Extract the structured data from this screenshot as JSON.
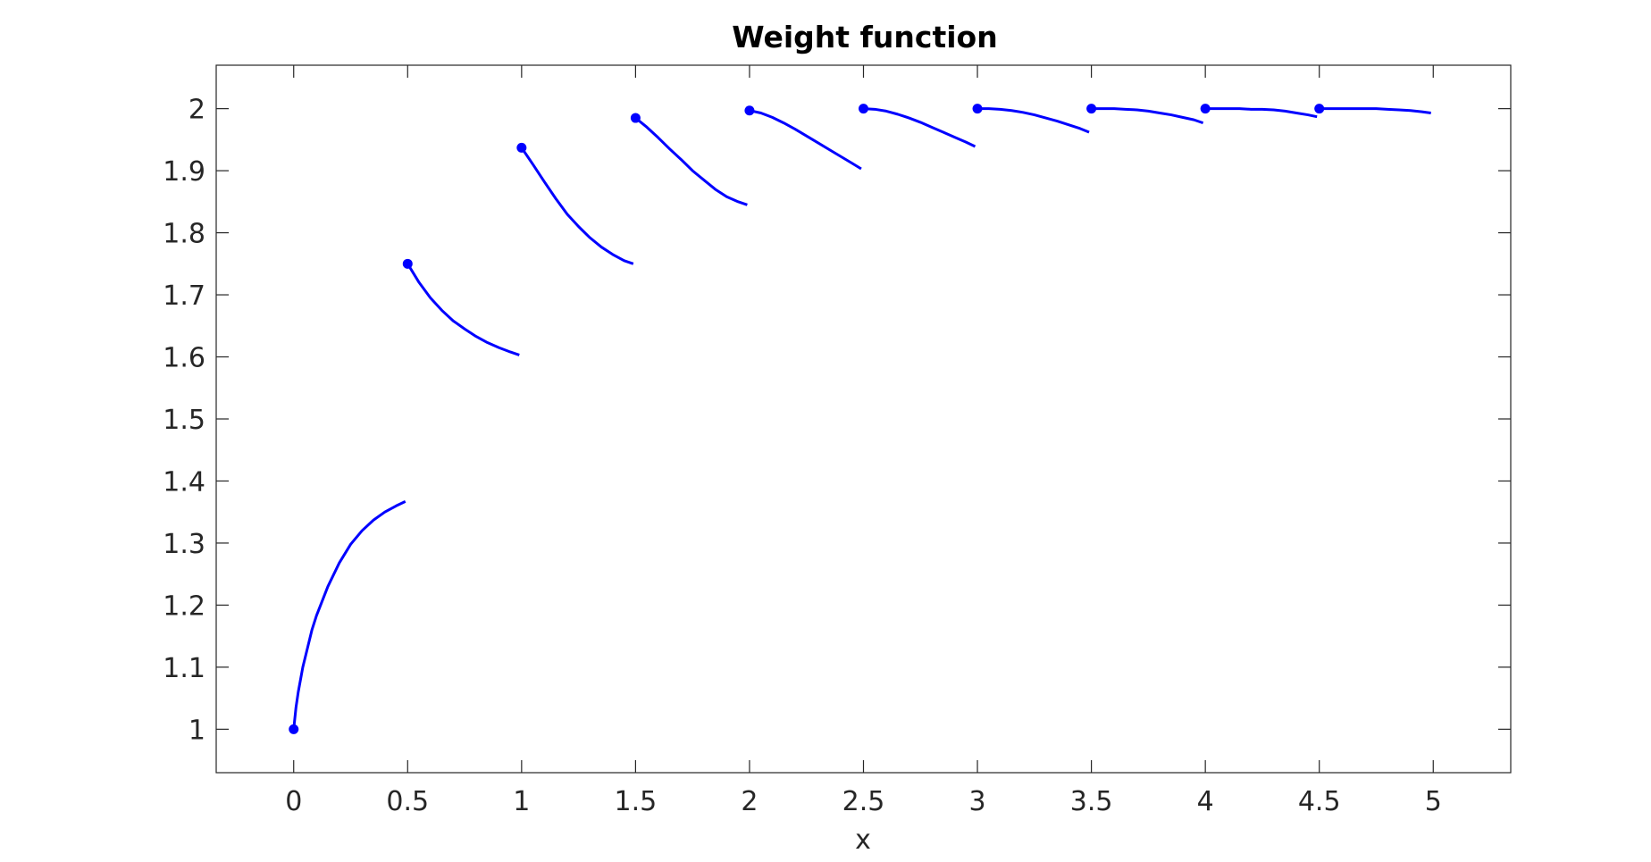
{
  "chart_data": {
    "type": "line",
    "title": "Weight function",
    "xlabel": "x",
    "ylabel": "",
    "xlim": [
      -0.34,
      5.34
    ],
    "ylim": [
      0.93,
      2.07
    ],
    "xticks": [
      0,
      0.5,
      1,
      1.5,
      2,
      2.5,
      3,
      3.5,
      4,
      4.5,
      5
    ],
    "xtick_labels": [
      "0",
      "0.5",
      "1",
      "1.5",
      "2",
      "2.5",
      "3",
      "3.5",
      "4",
      "4.5",
      "5"
    ],
    "yticks": [
      1,
      1.1,
      1.2,
      1.3,
      1.4,
      1.5,
      1.6,
      1.7,
      1.8,
      1.9,
      2
    ],
    "ytick_labels": [
      "1",
      "1.1",
      "1.2",
      "1.3",
      "1.4",
      "1.5",
      "1.6",
      "1.7",
      "1.8",
      "1.9",
      "2"
    ],
    "grid": false,
    "color": "#0000ff",
    "segments": [
      {
        "x": [
          0,
          0.01,
          0.02,
          0.04,
          0.06,
          0.08,
          0.1,
          0.15,
          0.2,
          0.25,
          0.3,
          0.35,
          0.4,
          0.45,
          0.49
        ],
        "y": [
          1.0,
          1.035,
          1.06,
          1.1,
          1.13,
          1.16,
          1.183,
          1.23,
          1.268,
          1.298,
          1.32,
          1.337,
          1.35,
          1.36,
          1.367
        ],
        "marker": {
          "x": 0,
          "y": 1.0
        }
      },
      {
        "x": [
          0.5,
          0.55,
          0.6,
          0.65,
          0.7,
          0.75,
          0.8,
          0.85,
          0.9,
          0.95,
          0.99
        ],
        "y": [
          1.75,
          1.72,
          1.695,
          1.675,
          1.658,
          1.645,
          1.633,
          1.623,
          1.615,
          1.608,
          1.603
        ],
        "marker": {
          "x": 0.5,
          "y": 1.75
        }
      },
      {
        "x": [
          1,
          1.05,
          1.1,
          1.15,
          1.2,
          1.25,
          1.3,
          1.35,
          1.4,
          1.45,
          1.49
        ],
        "y": [
          1.937,
          1.91,
          1.882,
          1.855,
          1.83,
          1.81,
          1.792,
          1.777,
          1.765,
          1.755,
          1.75
        ],
        "marker": {
          "x": 1,
          "y": 1.937
        }
      },
      {
        "x": [
          1.5,
          1.55,
          1.6,
          1.65,
          1.7,
          1.75,
          1.8,
          1.85,
          1.9,
          1.95,
          1.99
        ],
        "y": [
          1.985,
          1.97,
          1.953,
          1.935,
          1.918,
          1.9,
          1.885,
          1.87,
          1.858,
          1.85,
          1.845
        ],
        "marker": {
          "x": 1.5,
          "y": 1.985
        }
      },
      {
        "x": [
          2,
          2.05,
          2.1,
          2.15,
          2.2,
          2.25,
          2.3,
          2.35,
          2.4,
          2.45,
          2.49
        ],
        "y": [
          1.997,
          1.993,
          1.986,
          1.977,
          1.967,
          1.956,
          1.945,
          1.934,
          1.923,
          1.912,
          1.903
        ],
        "marker": {
          "x": 2,
          "y": 1.997
        }
      },
      {
        "x": [
          2.5,
          2.55,
          2.6,
          2.65,
          2.7,
          2.75,
          2.8,
          2.85,
          2.9,
          2.95,
          2.99
        ],
        "y": [
          2.0,
          1.999,
          1.996,
          1.991,
          1.985,
          1.978,
          1.97,
          1.962,
          1.954,
          1.946,
          1.939
        ],
        "marker": {
          "x": 2.5,
          "y": 2.0
        }
      },
      {
        "x": [
          3,
          3.05,
          3.1,
          3.15,
          3.2,
          3.25,
          3.3,
          3.35,
          3.4,
          3.45,
          3.49
        ],
        "y": [
          2.0,
          2.0,
          1.999,
          1.997,
          1.994,
          1.99,
          1.985,
          1.98,
          1.974,
          1.968,
          1.962
        ],
        "marker": {
          "x": 3,
          "y": 2.0
        }
      },
      {
        "x": [
          3.5,
          3.55,
          3.6,
          3.65,
          3.7,
          3.75,
          3.8,
          3.85,
          3.9,
          3.95,
          3.99
        ],
        "y": [
          2.0,
          2.0,
          2.0,
          1.999,
          1.998,
          1.996,
          1.993,
          1.99,
          1.986,
          1.982,
          1.977
        ],
        "marker": {
          "x": 3.5,
          "y": 2.0
        }
      },
      {
        "x": [
          4,
          4.05,
          4.1,
          4.15,
          4.2,
          4.25,
          4.3,
          4.35,
          4.4,
          4.45,
          4.49
        ],
        "y": [
          2.0,
          2.0,
          2.0,
          2.0,
          1.999,
          1.999,
          1.998,
          1.996,
          1.993,
          1.99,
          1.987
        ],
        "marker": {
          "x": 4,
          "y": 2.0
        }
      },
      {
        "x": [
          4.5,
          4.55,
          4.6,
          4.65,
          4.7,
          4.75,
          4.8,
          4.85,
          4.9,
          4.95,
          4.99
        ],
        "y": [
          2.0,
          2.0,
          2.0,
          2.0,
          2.0,
          2.0,
          1.999,
          1.998,
          1.997,
          1.995,
          1.993
        ],
        "marker": {
          "x": 4.5,
          "y": 2.0
        }
      }
    ]
  }
}
